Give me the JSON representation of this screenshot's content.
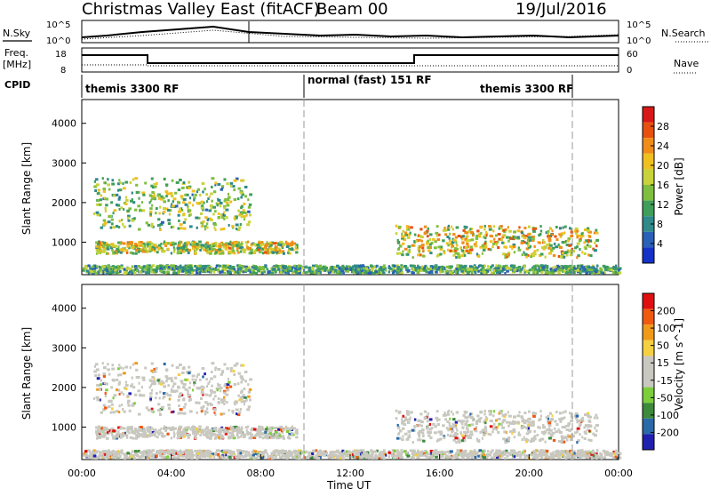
{
  "header": {
    "title": "Christmas Valley East (fitACF)",
    "beam": "Beam 00",
    "date": "19/Jul/2016"
  },
  "labels": {
    "nsky": "N.Sky",
    "nsearch": "N.Search",
    "freq_line1": "Freq.",
    "freq_line2": "[MHz]",
    "nave": "Nave",
    "cpid": "CPID"
  },
  "noise_axis": {
    "top": "10^5",
    "bottom": "10^0"
  },
  "freq_axis": {
    "left_ticks": [
      "18",
      "8"
    ],
    "right_ticks": [
      "60",
      "0"
    ]
  },
  "cpid_segments": [
    {
      "label": "themis 3300 RF",
      "start": "00:00",
      "end": "10:00"
    },
    {
      "label": "normal (fast) 151 RF",
      "start": "10:00",
      "end": "22:00"
    },
    {
      "label": "themis 3300 RF",
      "start": "20:30",
      "end": "22:00"
    }
  ],
  "chart_data": [
    {
      "type": "heatmap",
      "title": "Power",
      "xlabel": "",
      "ylabel": "Slant Range [km]",
      "x_ticks": [
        "00:00",
        "04:00",
        "08:00",
        "12:00",
        "16:00",
        "20:00",
        "00:00"
      ],
      "y_ticks": [
        "1000",
        "2000",
        "3000",
        "4000"
      ],
      "ylim": [
        180,
        4600
      ],
      "xlim_hours": [
        0,
        24
      ],
      "colorbar": {
        "label": "Power [dB]",
        "range": [
          0,
          32
        ],
        "ticks": [
          "4",
          "8",
          "12",
          "16",
          "20",
          "24",
          "28"
        ]
      },
      "features": [
        {
          "name": "near-range band",
          "start_hour": 0.6,
          "end_hour": 9.6,
          "range_km": [
            700,
            1000
          ],
          "power_db": [
            8,
            26
          ]
        },
        {
          "name": "morning arc",
          "start_hour": 0.5,
          "end_hour": 7.5,
          "range_km": [
            1300,
            2600
          ],
          "power_db": [
            6,
            22
          ]
        },
        {
          "name": "evening patch",
          "start_hour": 14.0,
          "end_hour": 23.0,
          "range_km": [
            600,
            1400
          ],
          "power_db": [
            8,
            28
          ]
        },
        {
          "name": "ground-scatter floor",
          "start_hour": 0,
          "end_hour": 24,
          "range_km": [
            200,
            400
          ],
          "power_db": [
            4,
            18
          ]
        }
      ]
    },
    {
      "type": "heatmap",
      "title": "Velocity",
      "xlabel": "Time UT",
      "ylabel": "Slant Range [km]",
      "x_ticks": [
        "00:00",
        "04:00",
        "08:00",
        "12:00",
        "16:00",
        "20:00",
        "00:00"
      ],
      "y_ticks": [
        "1000",
        "2000",
        "3000",
        "4000"
      ],
      "ylim": [
        180,
        4600
      ],
      "xlim_hours": [
        0,
        24
      ],
      "colorbar": {
        "label": "Velocity [m s^-1]",
        "range": [
          -250,
          250
        ],
        "ticks": [
          "200",
          "100",
          "50",
          "15",
          "-15",
          "-50",
          "-100",
          "-200"
        ]
      },
      "note_colors": {
        "ground_scatter": "#c8c8c0"
      }
    }
  ],
  "colors": {
    "power_scale": [
      "#1432c8",
      "#2a60b8",
      "#2f8a8a",
      "#3f9f5a",
      "#7fbf3f",
      "#c8d23a",
      "#f0c020",
      "#f08c18",
      "#e85010",
      "#d81818"
    ],
    "velocity_scale": [
      "#e01010",
      "#f05a10",
      "#f09a18",
      "#f5d040",
      "#c8c8c0",
      "#c8c8c0",
      "#7ccf3a",
      "#3c8a3a",
      "#2a6aa8",
      "#2020b0"
    ]
  }
}
